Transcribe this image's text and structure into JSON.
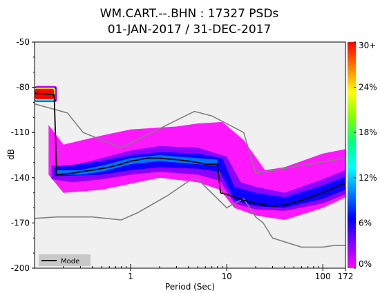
{
  "chart_data": {
    "type": "heatmap",
    "title": "WM.CART.--.BHN : 17327 PSDs",
    "subtitle": "01-JAN-2017 / 31-DEC-2017",
    "xlabel": "Period (Sec)",
    "ylabel": "dB",
    "x_scale": "log",
    "xlim": [
      0.1,
      172
    ],
    "ylim": [
      -200,
      -50
    ],
    "xticks": [
      {
        "value": 1,
        "label": "1"
      },
      {
        "value": 10,
        "label": "10"
      },
      {
        "value": 100,
        "label": "100"
      },
      {
        "value": 172,
        "label": "172"
      }
    ],
    "yticks": [
      {
        "value": -50,
        "label": "-50"
      },
      {
        "value": -80,
        "label": "-80"
      },
      {
        "value": -110,
        "label": "-110"
      },
      {
        "value": -140,
        "label": "-140"
      },
      {
        "value": -170,
        "label": "-170"
      },
      {
        "value": -200,
        "label": "-200"
      }
    ],
    "colorbar": {
      "ticks": [
        {
          "value": 0,
          "label": "0%"
        },
        {
          "value": 6,
          "label": "6%"
        },
        {
          "value": 12,
          "label": "12%"
        },
        {
          "value": 18,
          "label": "18%"
        },
        {
          "value": 24,
          "label": "24%"
        },
        {
          "value": 30,
          "label": "30+"
        }
      ],
      "colors": [
        "#ff00ff",
        "#7f00ff",
        "#0000ff",
        "#0080ff",
        "#00ffff",
        "#00ff80",
        "#80ff00",
        "#ffff00",
        "#ff8000",
        "#ff0000"
      ]
    },
    "legend": {
      "label": "Mode",
      "placement": "bottom-left"
    },
    "mode_series": {
      "name": "Mode",
      "points": [
        [
          0.1,
          -84
        ],
        [
          0.16,
          -85
        ],
        [
          0.17,
          -138
        ],
        [
          0.25,
          -137
        ],
        [
          0.3,
          -136
        ],
        [
          0.4,
          -135
        ],
        [
          0.6,
          -133
        ],
        [
          0.8,
          -131
        ],
        [
          1.0,
          -129
        ],
        [
          1.5,
          -127
        ],
        [
          2.0,
          -127
        ],
        [
          3.0,
          -128
        ],
        [
          4.0,
          -129
        ],
        [
          5.0,
          -130
        ],
        [
          6.0,
          -131
        ],
        [
          8.0,
          -131
        ],
        [
          8.6,
          -150
        ],
        [
          10,
          -151
        ],
        [
          12,
          -153
        ],
        [
          15,
          -155
        ],
        [
          20,
          -157
        ],
        [
          30,
          -159
        ],
        [
          40,
          -158
        ],
        [
          60,
          -155
        ],
        [
          100,
          -150
        ],
        [
          150,
          -145
        ],
        [
          172,
          -144
        ]
      ]
    },
    "high_noise_model": {
      "points": [
        [
          0.1,
          -91
        ],
        [
          0.22,
          -97
        ],
        [
          0.32,
          -110
        ],
        [
          0.8,
          -120
        ],
        [
          4.6,
          -96
        ],
        [
          7,
          -99
        ],
        [
          15,
          -110
        ],
        [
          20,
          -137
        ],
        [
          172,
          -127
        ]
      ]
    },
    "low_noise_model": {
      "points": [
        [
          0.1,
          -167
        ],
        [
          0.17,
          -166
        ],
        [
          0.4,
          -166
        ],
        [
          0.8,
          -168
        ],
        [
          1.2,
          -163
        ],
        [
          2.4,
          -152
        ],
        [
          4.3,
          -141
        ],
        [
          5,
          -141
        ],
        [
          10,
          -160
        ],
        [
          12,
          -157
        ],
        [
          15,
          -154
        ],
        [
          20,
          -166
        ],
        [
          24,
          -170
        ],
        [
          30,
          -180
        ],
        [
          60,
          -186
        ],
        [
          100,
          -186
        ],
        [
          130,
          -185
        ],
        [
          172,
          -185
        ]
      ]
    },
    "density_bands": [
      {
        "level": 0.5,
        "points": [
          [
            0.14,
            -138
          ],
          [
            0.2,
            -150
          ],
          [
            0.5,
            -148
          ],
          [
            1.0,
            -144
          ],
          [
            2.0,
            -140
          ],
          [
            5,
            -143
          ],
          [
            8.5,
            -148
          ],
          [
            12,
            -160
          ],
          [
            20,
            -165
          ],
          [
            40,
            -168
          ],
          [
            100,
            -160
          ],
          [
            172,
            -153
          ],
          [
            172,
            -121
          ],
          [
            100,
            -124
          ],
          [
            40,
            -133
          ],
          [
            25,
            -135
          ],
          [
            15,
            -115
          ],
          [
            9,
            -103
          ],
          [
            5,
            -104
          ],
          [
            3,
            -106
          ],
          [
            1.0,
            -108
          ],
          [
            0.5,
            -112
          ],
          [
            0.2,
            -118
          ],
          [
            0.14,
            -105
          ]
        ]
      },
      {
        "level": 3,
        "points": [
          [
            0.15,
            -141
          ],
          [
            0.25,
            -143
          ],
          [
            0.5,
            -141
          ],
          [
            1.0,
            -138
          ],
          [
            2.0,
            -136
          ],
          [
            5,
            -138
          ],
          [
            8.5,
            -142
          ],
          [
            12,
            -157
          ],
          [
            20,
            -161
          ],
          [
            40,
            -162
          ],
          [
            100,
            -157
          ],
          [
            172,
            -151
          ],
          [
            172,
            -135
          ],
          [
            100,
            -141
          ],
          [
            40,
            -150
          ],
          [
            20,
            -146
          ],
          [
            14,
            -143
          ],
          [
            10,
            -126
          ],
          [
            5,
            -120
          ],
          [
            2,
            -119
          ],
          [
            1.0,
            -122
          ],
          [
            0.5,
            -127
          ],
          [
            0.25,
            -132
          ],
          [
            0.15,
            -132
          ]
        ]
      },
      {
        "level": 6,
        "points": [
          [
            0.16,
            -139
          ],
          [
            0.5,
            -138
          ],
          [
            1.0,
            -135
          ],
          [
            2.0,
            -133
          ],
          [
            5,
            -134
          ],
          [
            8.5,
            -136
          ],
          [
            12,
            -155
          ],
          [
            20,
            -159
          ],
          [
            40,
            -160
          ],
          [
            100,
            -154
          ],
          [
            172,
            -148
          ],
          [
            172,
            -139
          ],
          [
            100,
            -145
          ],
          [
            40,
            -153
          ],
          [
            20,
            -150
          ],
          [
            12,
            -146
          ],
          [
            9,
            -127
          ],
          [
            5,
            -124
          ],
          [
            2,
            -123
          ],
          [
            1.0,
            -125
          ],
          [
            0.5,
            -129
          ],
          [
            0.16,
            -133
          ]
        ]
      },
      {
        "level": 11,
        "points": [
          [
            0.17,
            -138
          ],
          [
            0.3,
            -138
          ],
          [
            0.5,
            -136
          ],
          [
            1,
            -131
          ],
          [
            2,
            -129
          ],
          [
            5,
            -131
          ],
          [
            8,
            -132
          ],
          [
            8,
            -128
          ],
          [
            5,
            -127
          ],
          [
            2,
            -125
          ],
          [
            1,
            -127
          ],
          [
            0.5,
            -132
          ],
          [
            0.3,
            -135
          ],
          [
            0.17,
            -135
          ]
        ]
      }
    ],
    "hot_spot": {
      "level": 30,
      "points": [
        [
          0.1,
          -81
        ],
        [
          0.16,
          -81
        ],
        [
          0.16,
          -88
        ],
        [
          0.1,
          -88
        ]
      ]
    }
  }
}
